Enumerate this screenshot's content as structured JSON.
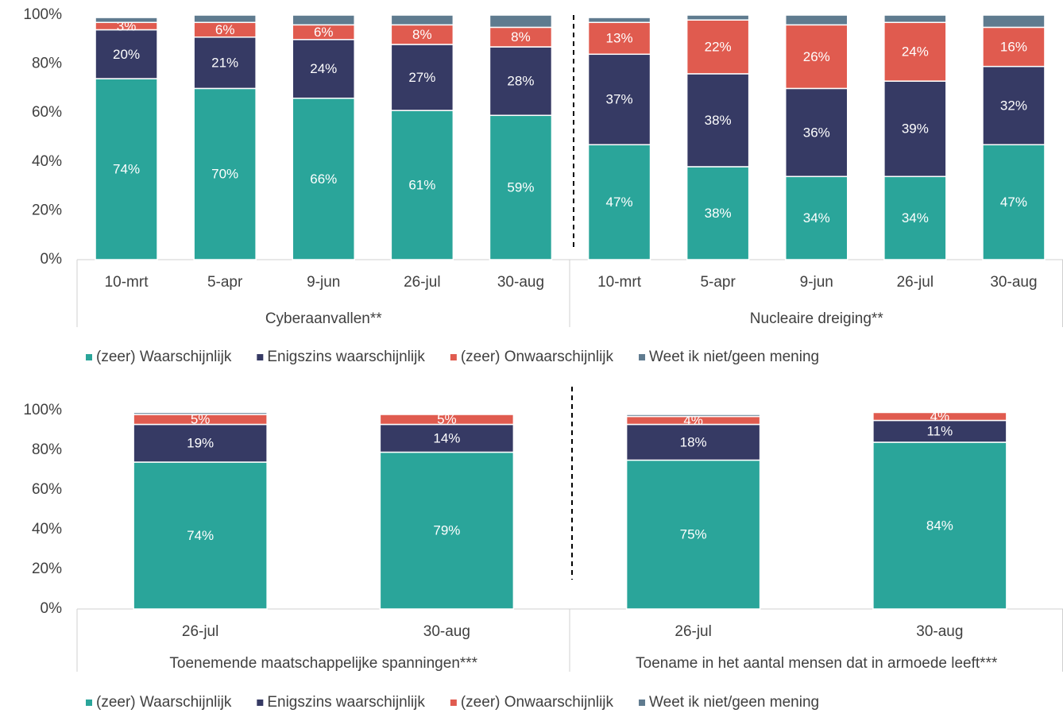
{
  "chart_data": [
    {
      "type": "stacked_bar",
      "groups": [
        {
          "name": "Cyberaanvallen**",
          "categories": [
            "10-mrt",
            "5-apr",
            "9-jun",
            "26-jul",
            "30-aug"
          ]
        },
        {
          "name": "Nucleaire dreiging**",
          "categories": [
            "10-mrt",
            "5-apr",
            "9-jun",
            "26-jul",
            "30-aug"
          ]
        }
      ],
      "series": [
        {
          "name": "(zeer) Waarschijnlijk",
          "color": "#2aa59a",
          "values": [
            74,
            70,
            66,
            61,
            59,
            47,
            38,
            34,
            34,
            47
          ],
          "value_labels": [
            "74%",
            "70%",
            "66%",
            "61%",
            "59%",
            "47%",
            "38%",
            "34%",
            "34%",
            "47%"
          ]
        },
        {
          "name": "Enigszins waarschijnlijk",
          "color": "#363a64",
          "values": [
            20,
            21,
            24,
            27,
            28,
            37,
            38,
            36,
            39,
            32
          ],
          "value_labels": [
            "20%",
            "21%",
            "24%",
            "27%",
            "28%",
            "37%",
            "38%",
            "36%",
            "39%",
            "32%"
          ]
        },
        {
          "name": "(zeer) Onwaarschijnlijk",
          "color": "#e05b4f",
          "values": [
            3,
            6,
            6,
            8,
            8,
            13,
            22,
            26,
            24,
            16
          ],
          "value_labels": [
            "3%",
            "6%",
            "6%",
            "8%",
            "8%",
            "13%",
            "22%",
            "26%",
            "24%",
            "16%"
          ]
        },
        {
          "name": "Weet ik niet/geen mening",
          "color": "#5f7b8f",
          "values": [
            2,
            3,
            4,
            4,
            5,
            2,
            2,
            4,
            3,
            5
          ]
        }
      ],
      "ylim": [
        0,
        100
      ],
      "yticks": [
        {
          "value": 0,
          "label": "0%"
        },
        {
          "value": 20,
          "label": "20%"
        },
        {
          "value": 40,
          "label": "40%"
        },
        {
          "value": 60,
          "label": "60%"
        },
        {
          "value": 80,
          "label": "80%"
        },
        {
          "value": 100,
          "label": "100%"
        }
      ],
      "legend": "bottom"
    },
    {
      "type": "stacked_bar",
      "groups": [
        {
          "name": "Toenemende maatschappelijke spanningen***",
          "categories": [
            "26-jul",
            "30-aug"
          ]
        },
        {
          "name": "Toename in het aantal mensen dat in armoede leeft***",
          "categories": [
            "26-jul",
            "30-aug"
          ]
        }
      ],
      "series": [
        {
          "name": "(zeer) Waarschijnlijk",
          "color": "#2aa59a",
          "values": [
            74,
            79,
            75,
            84
          ],
          "value_labels": [
            "74%",
            "79%",
            "75%",
            "84%"
          ]
        },
        {
          "name": "Enigszins waarschijnlijk",
          "color": "#363a64",
          "values": [
            19,
            14,
            18,
            11
          ],
          "value_labels": [
            "19%",
            "14%",
            "18%",
            "11%"
          ]
        },
        {
          "name": "(zeer) Onwaarschijnlijk",
          "color": "#e05b4f",
          "values": [
            5,
            5,
            4,
            4
          ],
          "value_labels": [
            "5%",
            "5%",
            "4%",
            "4%"
          ]
        },
        {
          "name": "Weet ik niet/geen mening",
          "color": "#5f7b8f",
          "values": [
            1,
            0,
            1,
            0
          ]
        }
      ],
      "ylim": [
        0,
        100
      ],
      "yticks": [
        {
          "value": 0,
          "label": "0%"
        },
        {
          "value": 20,
          "label": "20%"
        },
        {
          "value": 40,
          "label": "40%"
        },
        {
          "value": 60,
          "label": "60%"
        },
        {
          "value": 80,
          "label": "80%"
        },
        {
          "value": 100,
          "label": "100%"
        }
      ],
      "legend": "bottom"
    }
  ]
}
